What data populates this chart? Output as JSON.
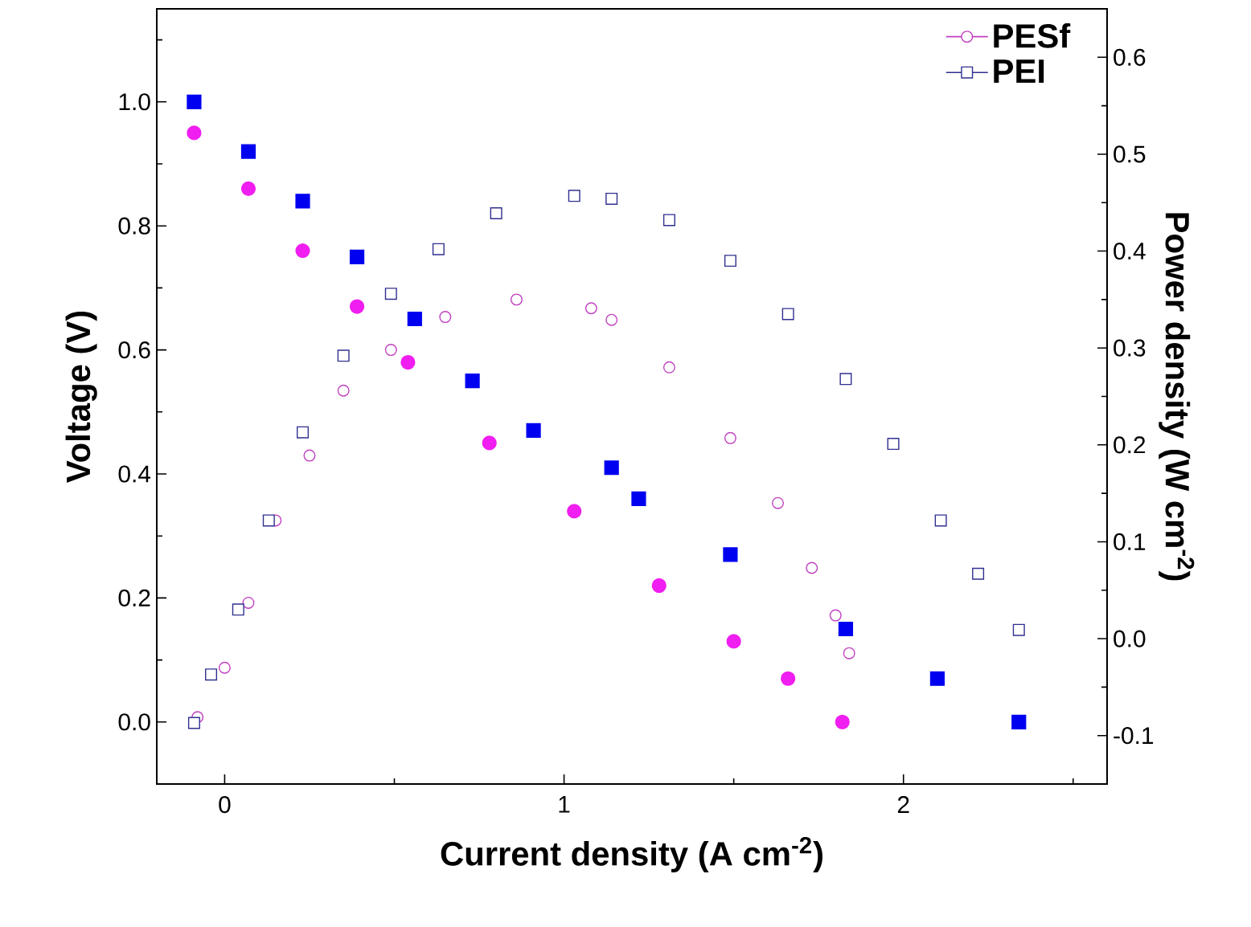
{
  "chart_data": {
    "type": "scatter",
    "xlabel": "Current density  (A cm$^{-2}$)",
    "ylabel": "Voltage (V)",
    "y2label": "Power density  (W cm$^{-2}$)",
    "xlim": [
      -0.2,
      2.6
    ],
    "ylim": [
      -0.1,
      1.15
    ],
    "y2lim": [
      -0.15,
      0.65
    ],
    "xticks": [
      0,
      {
        "value": 0.5,
        "label": null
      },
      1,
      {
        "value": 1.5,
        "label": null
      },
      2,
      {
        "value": 2.5,
        "label": null
      }
    ],
    "yticks": [
      {
        "value": 0,
        "label": "0.0"
      },
      {
        "value": 0.1,
        "label": null
      },
      {
        "value": 0.2,
        "label": "0.2"
      },
      {
        "value": 0.3,
        "label": null
      },
      {
        "value": 0.4,
        "label": "0.4"
      },
      {
        "value": 0.5,
        "label": null
      },
      {
        "value": 0.6,
        "label": "0.6"
      },
      {
        "value": 0.7,
        "label": null
      },
      {
        "value": 0.8,
        "label": "0.8"
      },
      {
        "value": 0.9,
        "label": null
      },
      {
        "value": 1.0,
        "label": "1.0"
      },
      {
        "value": 1.1,
        "label": null
      }
    ],
    "y2ticks": [
      -0.1,
      {
        "value": -0.05,
        "label": null
      },
      {
        "value": 0,
        "label": "0.0"
      },
      {
        "value": 0.05,
        "label": null
      },
      0.1,
      {
        "value": 0.15,
        "label": null
      },
      0.2,
      {
        "value": 0.25,
        "label": null
      },
      0.3,
      {
        "value": 0.35,
        "label": null
      },
      0.4,
      {
        "value": 0.45,
        "label": null
      },
      0.5,
      {
        "value": 0.55,
        "label": null
      },
      0.6
    ],
    "legend": "top right",
    "series": [
      {
        "color": "#f01ef0",
        "marker": "circle",
        "x": [
          -0.09,
          0.07,
          0.23,
          0.39,
          0.54,
          0.78,
          1.03,
          1.28,
          1.5,
          1.66,
          1.82
        ],
        "values": [
          0.95,
          0.86,
          0.76,
          0.67,
          0.58,
          0.45,
          0.34,
          0.22,
          0.13,
          0.07,
          0.0
        ]
      },
      {
        "color": "#0000f0",
        "marker": "square",
        "x": [
          -0.09,
          0.07,
          0.23,
          0.39,
          0.56,
          0.73,
          0.91,
          1.14,
          1.22,
          1.49,
          1.83,
          2.1,
          2.34
        ],
        "values": [
          1.0,
          0.92,
          0.84,
          0.75,
          0.65,
          0.55,
          0.47,
          0.41,
          0.36,
          0.27,
          0.15,
          0.07,
          0.0
        ]
      },
      {
        "name": "PESf",
        "color": "#c040c0",
        "marker": "circle",
        "axis": "y2",
        "x": [
          -0.08,
          0.0,
          0.07,
          0.15,
          0.25,
          0.35,
          0.49,
          0.65,
          0.86,
          1.08,
          1.14,
          1.31,
          1.49,
          1.63,
          1.73,
          1.8,
          1.84
        ],
        "values": [
          -0.081,
          -0.03,
          0.037,
          0.122,
          0.189,
          0.256,
          0.298,
          0.332,
          0.35,
          0.341,
          0.329,
          0.28,
          0.207,
          0.14,
          0.073,
          0.024,
          -0.015
        ]
      },
      {
        "name": "PEI",
        "color": "#303090",
        "marker": "square",
        "axis": "y2",
        "x": [
          -0.09,
          -0.04,
          0.04,
          0.13,
          0.23,
          0.35,
          0.49,
          0.63,
          0.8,
          1.03,
          1.14,
          1.31,
          1.49,
          1.66,
          1.83,
          1.97,
          2.11,
          2.22,
          2.34
        ],
        "values": [
          -0.087,
          -0.037,
          0.03,
          0.122,
          0.213,
          0.292,
          0.356,
          0.402,
          0.439,
          0.457,
          0.454,
          0.432,
          0.39,
          0.335,
          0.268,
          0.201,
          0.122,
          0.067,
          0.009
        ]
      }
    ]
  }
}
